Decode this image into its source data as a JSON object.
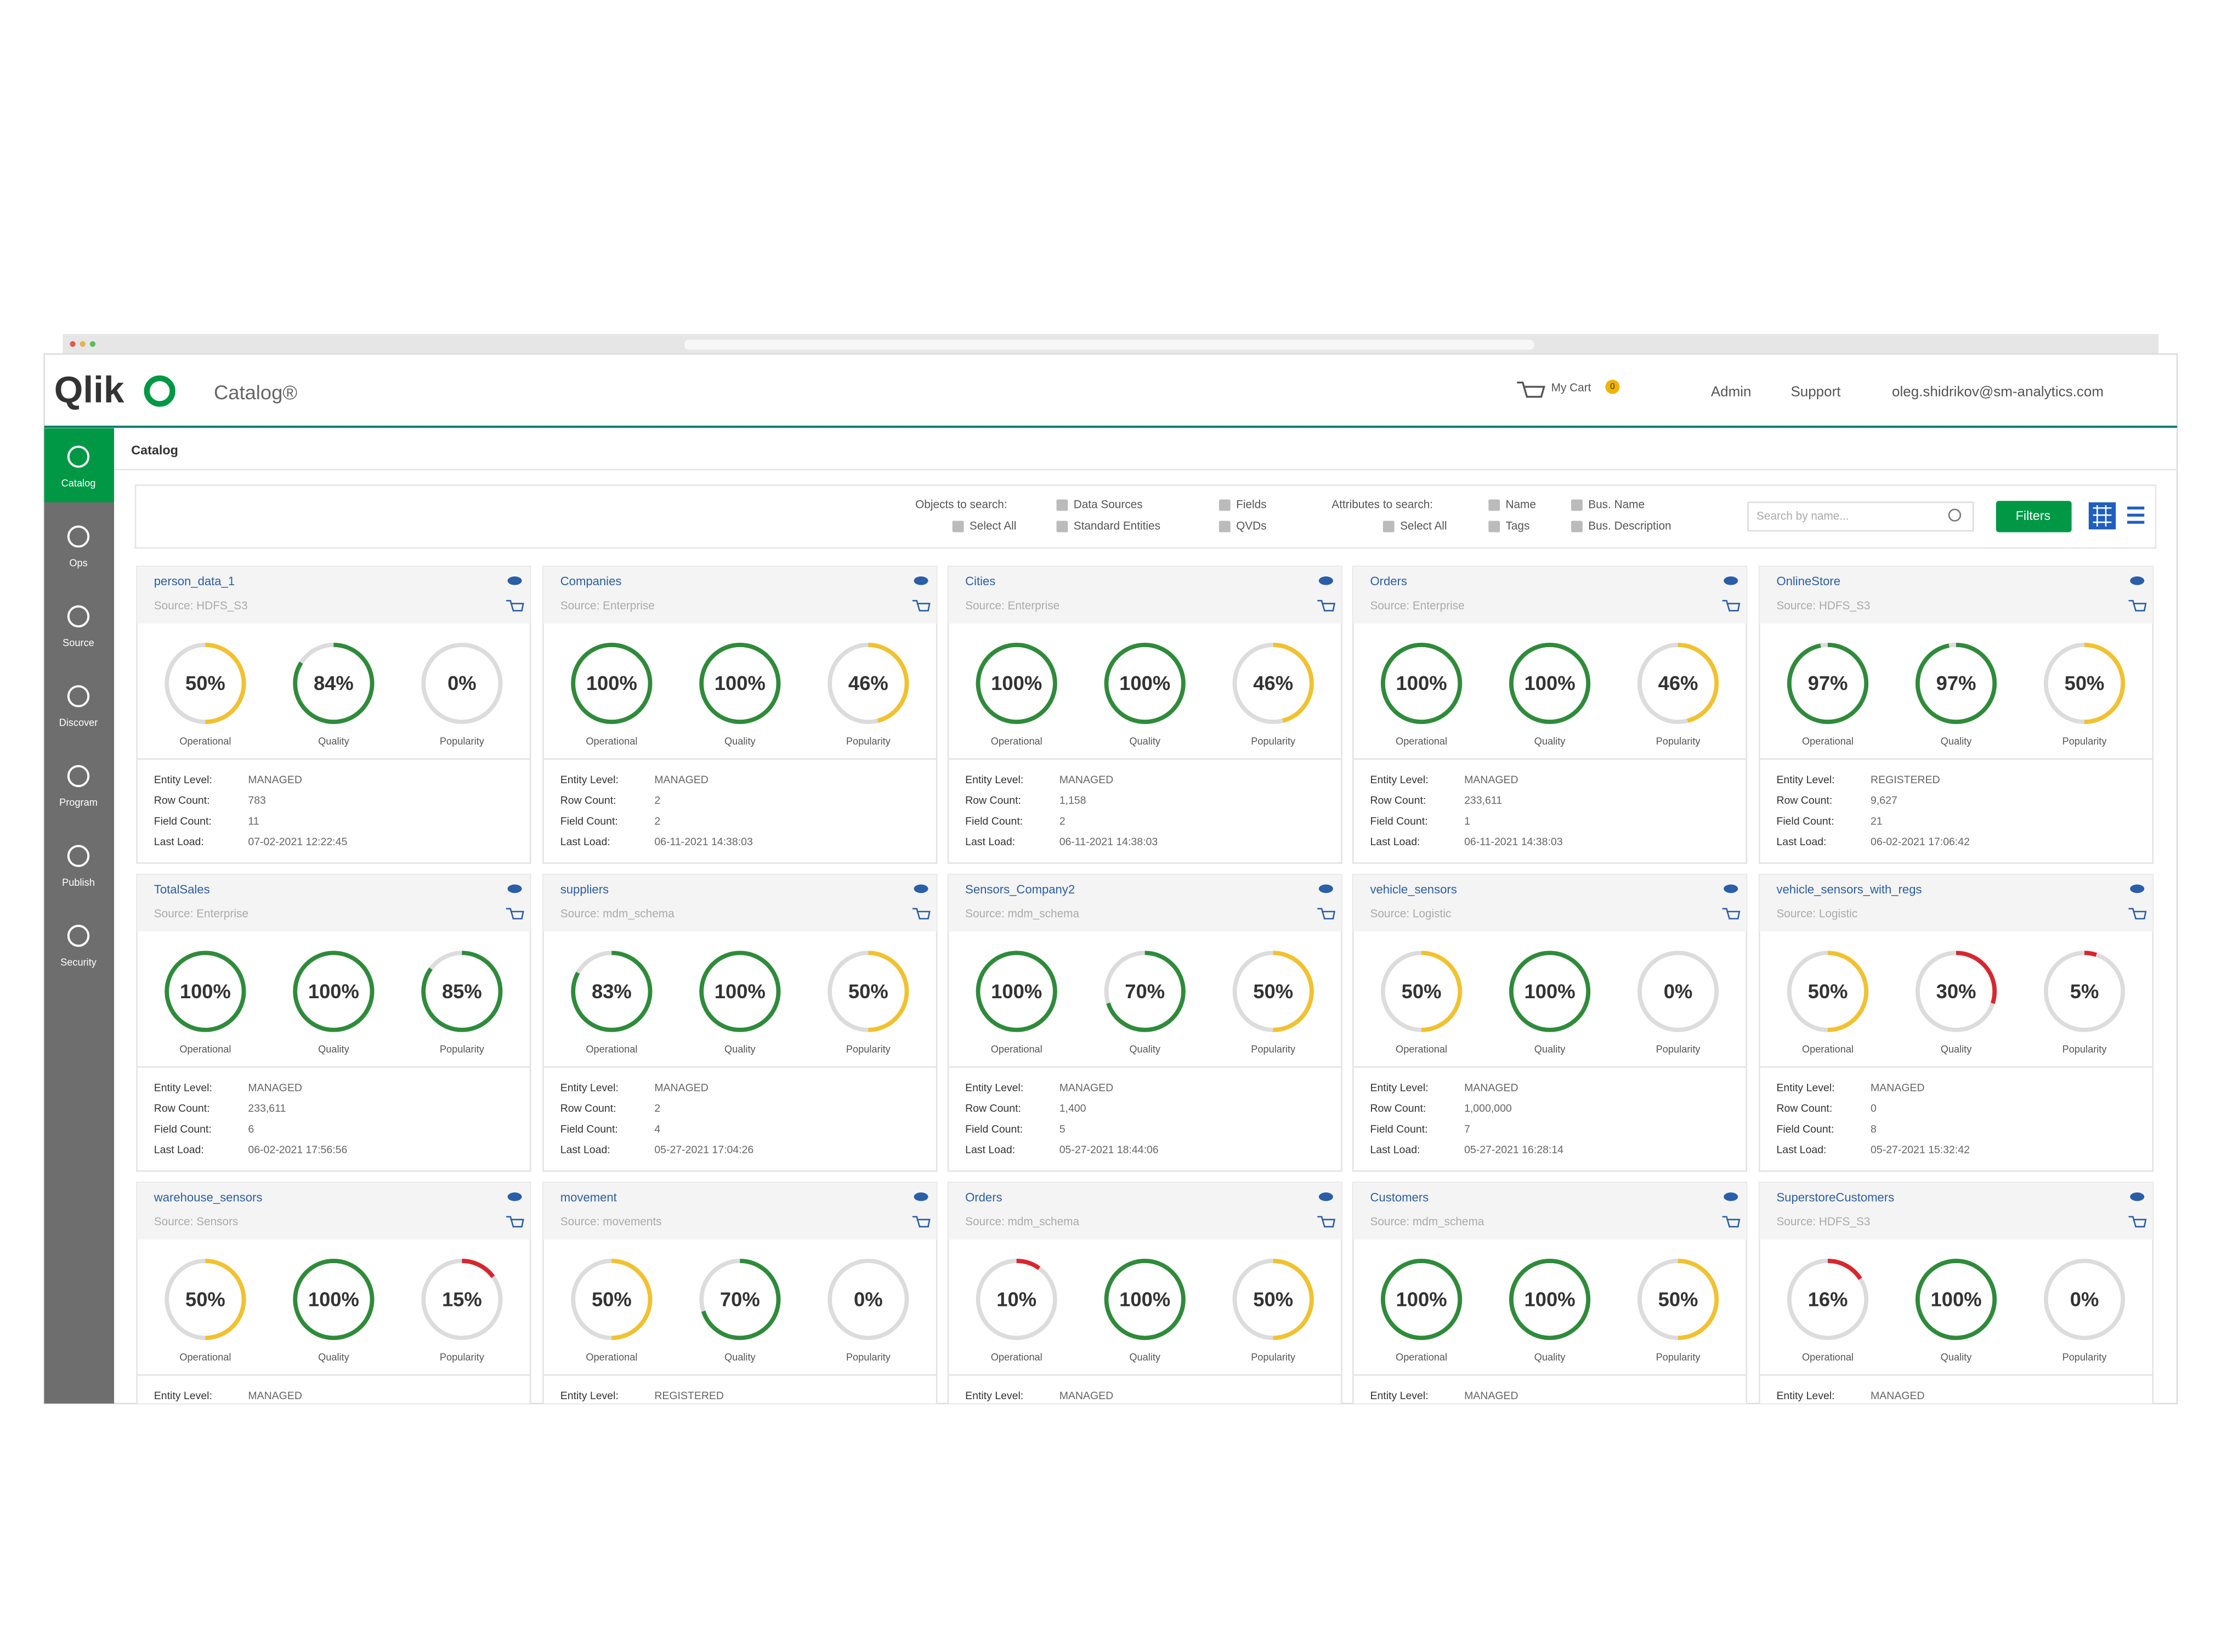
{
  "header": {
    "logo": "Qlik",
    "app": "Catalog®",
    "cart": "My Cart",
    "cart_count": "0",
    "admin": "Admin",
    "support": "Support",
    "user": "oleg.shidrikov@sm-analytics.com"
  },
  "sidebar": [
    "Catalog",
    "Ops",
    "Source",
    "Discover",
    "Program",
    "Publish",
    "Security"
  ],
  "breadcrumb": "Catalog",
  "search": {
    "objects_label": "Objects to search:",
    "objects": [
      "Select All",
      "Data Sources",
      "Standard Entities",
      "Fields",
      "QVDs"
    ],
    "attributes_label": "Attributes to search:",
    "attributes": [
      "Select All",
      "Name",
      "Tags",
      "Bus. Name",
      "Bus. Description"
    ],
    "placeholder": "Search by name...",
    "filters": "Filters"
  },
  "field_labels": [
    "Entity Level:",
    "Row Count:",
    "Field Count:",
    "Last Load:"
  ],
  "cards": [
    {
      "title": "person_data_1",
      "source": "Source: HDFS_S3",
      "metrics": [
        {
          "label": "Operational",
          "value": 50,
          "value_label": "50%"
        },
        {
          "label": "Quality",
          "value": 84,
          "value_label": "84%"
        },
        {
          "label": "Popularity",
          "value": 0,
          "value_label": "0%"
        }
      ],
      "details": [
        "MANAGED",
        "783",
        "11",
        "07-02-2021 12:22:45"
      ]
    },
    {
      "title": "Companies",
      "source": "Source: Enterprise",
      "metrics": [
        {
          "label": "Operational",
          "value": 100,
          "value_label": "100%"
        },
        {
          "label": "Quality",
          "value": 100,
          "value_label": "100%"
        },
        {
          "label": "Popularity",
          "value": 46,
          "value_label": "46%"
        }
      ],
      "details": [
        "MANAGED",
        "2",
        "2",
        "06-11-2021 14:38:03"
      ]
    },
    {
      "title": "Cities",
      "source": "Source: Enterprise",
      "metrics": [
        {
          "label": "Operational",
          "value": 100,
          "value_label": "100%"
        },
        {
          "label": "Quality",
          "value": 100,
          "value_label": "100%"
        },
        {
          "label": "Popularity",
          "value": 46,
          "value_label": "46%"
        }
      ],
      "details": [
        "MANAGED",
        "1,158",
        "2",
        "06-11-2021 14:38:03"
      ]
    },
    {
      "title": "Orders",
      "source": "Source: Enterprise",
      "metrics": [
        {
          "label": "Operational",
          "value": 100,
          "value_label": "100%"
        },
        {
          "label": "Quality",
          "value": 100,
          "value_label": "100%"
        },
        {
          "label": "Popularity",
          "value": 46,
          "value_label": "46%"
        }
      ],
      "details": [
        "MANAGED",
        "233,611",
        "1",
        "06-11-2021 14:38:03"
      ]
    },
    {
      "title": "OnlineStore",
      "source": "Source: HDFS_S3",
      "metrics": [
        {
          "label": "Operational",
          "value": 97,
          "value_label": "97%"
        },
        {
          "label": "Quality",
          "value": 97,
          "value_label": "97%"
        },
        {
          "label": "Popularity",
          "value": 50,
          "value_label": "50%"
        }
      ],
      "details": [
        "REGISTERED",
        "9,627",
        "21",
        "06-02-2021 17:06:42"
      ]
    },
    {
      "title": "TotalSales",
      "source": "Source: Enterprise",
      "metrics": [
        {
          "label": "Operational",
          "value": 100,
          "value_label": "100%"
        },
        {
          "label": "Quality",
          "value": 100,
          "value_label": "100%"
        },
        {
          "label": "Popularity",
          "value": 85,
          "value_label": "85%"
        }
      ],
      "details": [
        "MANAGED",
        "233,611",
        "6",
        "06-02-2021 17:56:56"
      ]
    },
    {
      "title": "suppliers",
      "source": "Source: mdm_schema",
      "metrics": [
        {
          "label": "Operational",
          "value": 83,
          "value_label": "83%"
        },
        {
          "label": "Quality",
          "value": 100,
          "value_label": "100%"
        },
        {
          "label": "Popularity",
          "value": 50,
          "value_label": "50%"
        }
      ],
      "details": [
        "MANAGED",
        "2",
        "4",
        "05-27-2021 17:04:26"
      ]
    },
    {
      "title": "Sensors_Company2",
      "source": "Source: mdm_schema",
      "metrics": [
        {
          "label": "Operational",
          "value": 100,
          "value_label": "100%"
        },
        {
          "label": "Quality",
          "value": 70,
          "value_label": "70%"
        },
        {
          "label": "Popularity",
          "value": 50,
          "value_label": "50%"
        }
      ],
      "details": [
        "MANAGED",
        "1,400",
        "5",
        "05-27-2021 18:44:06"
      ]
    },
    {
      "title": "vehicle_sensors",
      "source": "Source: Logistic",
      "metrics": [
        {
          "label": "Operational",
          "value": 50,
          "value_label": "50%"
        },
        {
          "label": "Quality",
          "value": 100,
          "value_label": "100%"
        },
        {
          "label": "Popularity",
          "value": 0,
          "value_label": "0%"
        }
      ],
      "details": [
        "MANAGED",
        "1,000,000",
        "7",
        "05-27-2021 16:28:14"
      ]
    },
    {
      "title": "vehicle_sensors_with_regs",
      "source": "Source: Logistic",
      "metrics": [
        {
          "label": "Operational",
          "value": 50,
          "value_label": "50%"
        },
        {
          "label": "Quality",
          "value": 30,
          "value_label": "30%"
        },
        {
          "label": "Popularity",
          "value": 5,
          "value_label": "5%"
        }
      ],
      "details": [
        "MANAGED",
        "0",
        "8",
        "05-27-2021 15:32:42"
      ]
    },
    {
      "title": "warehouse_sensors",
      "source": "Source: Sensors",
      "metrics": [
        {
          "label": "Operational",
          "value": 50,
          "value_label": "50%"
        },
        {
          "label": "Quality",
          "value": 100,
          "value_label": "100%"
        },
        {
          "label": "Popularity",
          "value": 15,
          "value_label": "15%"
        }
      ],
      "details": [
        "MANAGED"
      ]
    },
    {
      "title": "movement",
      "source": "Source: movements",
      "metrics": [
        {
          "label": "Operational",
          "value": 50,
          "value_label": "50%"
        },
        {
          "label": "Quality",
          "value": 70,
          "value_label": "70%"
        },
        {
          "label": "Popularity",
          "value": 0,
          "value_label": "0%"
        }
      ],
      "details": [
        "REGISTERED"
      ]
    },
    {
      "title": "Orders",
      "source": "Source: mdm_schema",
      "metrics": [
        {
          "label": "Operational",
          "value": 10,
          "value_label": "10%"
        },
        {
          "label": "Quality",
          "value": 100,
          "value_label": "100%"
        },
        {
          "label": "Popularity",
          "value": 50,
          "value_label": "50%"
        }
      ],
      "details": [
        "MANAGED"
      ]
    },
    {
      "title": "Customers",
      "source": "Source: mdm_schema",
      "metrics": [
        {
          "label": "Operational",
          "value": 100,
          "value_label": "100%"
        },
        {
          "label": "Quality",
          "value": 100,
          "value_label": "100%"
        },
        {
          "label": "Popularity",
          "value": 50,
          "value_label": "50%"
        }
      ],
      "details": [
        "MANAGED"
      ]
    },
    {
      "title": "SuperstoreCustomers",
      "source": "Source: HDFS_S3",
      "metrics": [
        {
          "label": "Operational",
          "value": 16,
          "value_label": "16%"
        },
        {
          "label": "Quality",
          "value": 100,
          "value_label": "100%"
        },
        {
          "label": "Popularity",
          "value": 0,
          "value_label": "0%"
        }
      ],
      "details": [
        "MANAGED"
      ]
    }
  ]
}
